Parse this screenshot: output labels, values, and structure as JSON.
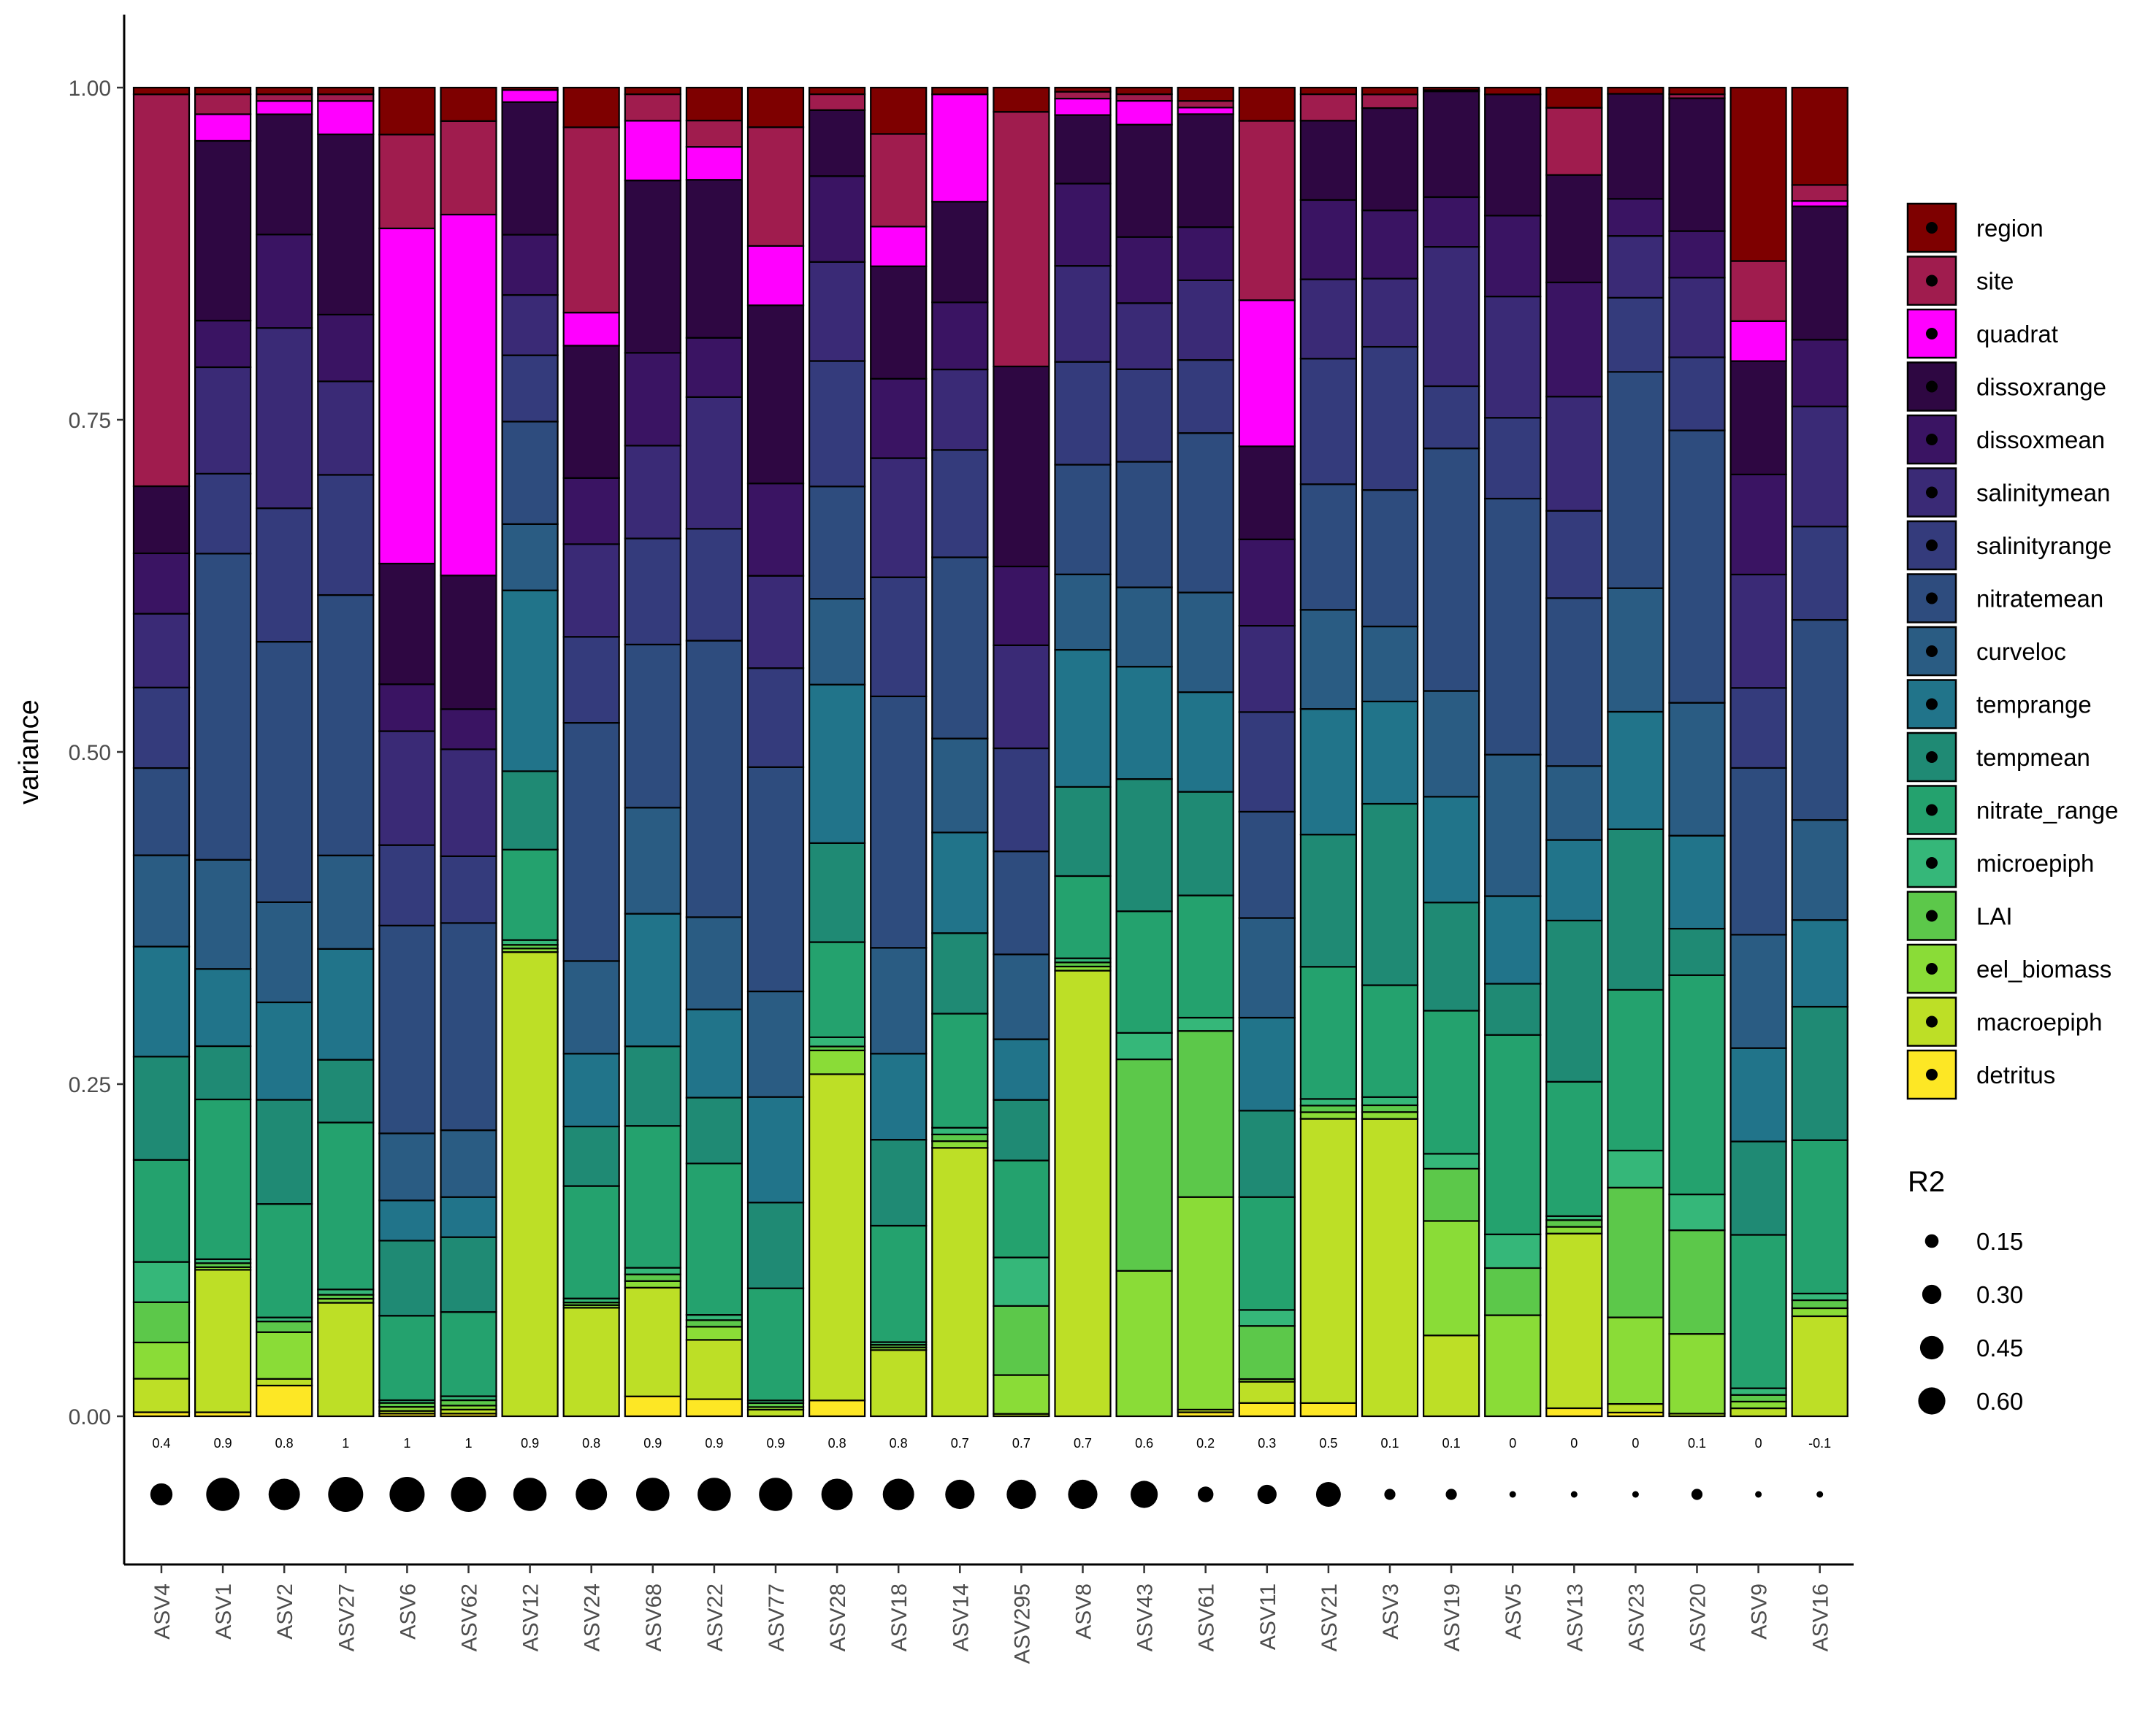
{
  "chart_data": {
    "type": "bar",
    "stacked": true,
    "ylabel": "variance",
    "xlabel": "",
    "ylim": [
      0,
      1
    ],
    "yticks": [
      "0.00",
      "0.25",
      "0.50",
      "0.75",
      "1.00"
    ],
    "categories": [
      "ASV4",
      "ASV1",
      "ASV2",
      "ASV27",
      "ASV6",
      "ASV62",
      "ASV12",
      "ASV24",
      "ASV68",
      "ASV22",
      "ASV77",
      "ASV28",
      "ASV18",
      "ASV14",
      "ASV295",
      "ASV8",
      "ASV43",
      "ASV61",
      "ASV11",
      "ASV21",
      "ASV3",
      "ASV19",
      "ASV5",
      "ASV13",
      "ASV23",
      "ASV20",
      "ASV9",
      "ASV16"
    ],
    "r2_labels": [
      "0.4",
      "0.9",
      "0.8",
      "1",
      "1",
      "1",
      "0.9",
      "0.8",
      "0.9",
      "0.9",
      "0.9",
      "0.8",
      "0.8",
      "0.7",
      "0.7",
      "0.7",
      "0.6",
      "0.2",
      "0.3",
      "0.5",
      "0.1",
      "0.1",
      "0",
      "0",
      "0",
      "0.1",
      "0",
      "-0.1"
    ],
    "r2_values": [
      0.4,
      0.9,
      0.8,
      1,
      1,
      1,
      0.9,
      0.8,
      0.9,
      0.9,
      0.9,
      0.8,
      0.8,
      0.7,
      0.7,
      0.7,
      0.6,
      0.2,
      0.3,
      0.5,
      0.1,
      0.1,
      0,
      0,
      0,
      0.1,
      0,
      -0.1
    ],
    "series": [
      {
        "name": "detritus",
        "color": "#FDE725",
        "values": [
          0.003,
          0.003,
          0.023,
          0,
          0.002,
          0.002,
          0,
          0,
          0.015,
          0.013,
          0,
          0.012,
          0,
          0,
          0,
          0,
          0,
          0.003,
          0.01,
          0.01,
          0,
          0,
          0,
          0.006,
          0.003,
          0,
          0,
          0
        ]
      },
      {
        "name": "macroepiph",
        "color": "#BDDF26",
        "values": [
          0.025,
          0.107,
          0.005,
          0.085,
          0.002,
          0.003,
          0.385,
          0.082,
          0.082,
          0.045,
          0.005,
          0.247,
          0.05,
          0.2,
          0.002,
          0.325,
          0,
          0.002,
          0.016,
          0.215,
          0.218,
          0.065,
          0,
          0.13,
          0.007,
          0.002,
          0.006,
          0.075
        ]
      },
      {
        "name": "eel_biomass",
        "color": "#8ADC37",
        "values": [
          0.027,
          0.002,
          0.035,
          0.003,
          0.003,
          0.003,
          0.003,
          0.002,
          0.005,
          0.01,
          0.002,
          0.018,
          0.002,
          0.005,
          0.032,
          0.003,
          0.11,
          0.16,
          0.002,
          0.005,
          0.005,
          0.092,
          0.075,
          0.005,
          0.07,
          0.06,
          0.005,
          0.006
        ]
      },
      {
        "name": "LAI",
        "color": "#5CC84A",
        "values": [
          0.03,
          0.003,
          0.008,
          0.003,
          0.003,
          0.004,
          0.003,
          0.002,
          0.005,
          0.005,
          0.003,
          0.003,
          0.002,
          0.005,
          0.057,
          0.003,
          0.16,
          0.125,
          0.04,
          0.005,
          0.005,
          0.042,
          0.035,
          0.005,
          0.105,
          0.078,
          0.005,
          0.006
        ]
      },
      {
        "name": "microepiph",
        "color": "#35B779",
        "values": [
          0.03,
          0.003,
          0.003,
          0.004,
          0.002,
          0.003,
          0.004,
          0.003,
          0.005,
          0.004,
          0.002,
          0.007,
          0.002,
          0.005,
          0.04,
          0.003,
          0.02,
          0.01,
          0.012,
          0.005,
          0.006,
          0.012,
          0.025,
          0.003,
          0.03,
          0.027,
          0.005,
          0.005
        ]
      },
      {
        "name": "nitrate_range",
        "color": "#24A26E",
        "values": [
          0.076,
          0.12,
          0.085,
          0.125,
          0.063,
          0.063,
          0.075,
          0.085,
          0.107,
          0.115,
          0.085,
          0.072,
          0.088,
          0.085,
          0.08,
          0.06,
          0.092,
          0.092,
          0.085,
          0.1,
          0.082,
          0.115,
          0.148,
          0.1,
          0.13,
          0.165,
          0.115,
          0.115
        ]
      },
      {
        "name": "tempmean",
        "color": "#1F8A74",
        "values": [
          0.077,
          0.04,
          0.078,
          0.047,
          0.056,
          0.056,
          0.065,
          0.045,
          0.06,
          0.05,
          0.065,
          0.075,
          0.065,
          0.06,
          0.05,
          0.065,
          0.1,
          0.078,
          0.065,
          0.1,
          0.133,
          0.087,
          0.038,
          0.12,
          0.13,
          0.035,
          0.07,
          0.1
        ]
      },
      {
        "name": "temprange",
        "color": "#21748A",
        "values": [
          0.082,
          0.058,
          0.073,
          0.083,
          0.03,
          0.03,
          0.15,
          0.055,
          0.1,
          0.067,
          0.08,
          0.12,
          0.065,
          0.075,
          0.05,
          0.1,
          0.085,
          0.075,
          0.07,
          0.095,
          0.075,
          0.085,
          0.065,
          0.06,
          0.095,
          0.07,
          0.07,
          0.065
        ]
      },
      {
        "name": "curveloc",
        "color": "#2A5C83",
        "values": [
          0.068,
          0.082,
          0.075,
          0.07,
          0.05,
          0.05,
          0.055,
          0.07,
          0.08,
          0.07,
          0.08,
          0.065,
          0.08,
          0.07,
          0.07,
          0.055,
          0.06,
          0.075,
          0.075,
          0.075,
          0.055,
          0.085,
          0.105,
          0.055,
          0.1,
          0.1,
          0.085,
          0.075
        ]
      },
      {
        "name": "nitratemean",
        "color": "#2E4C7E",
        "values": [
          0.065,
          0.23,
          0.195,
          0.195,
          0.155,
          0.155,
          0.085,
          0.18,
          0.123,
          0.21,
          0.17,
          0.085,
          0.19,
          0.135,
          0.085,
          0.08,
          0.095,
          0.12,
          0.08,
          0.095,
          0.1,
          0.195,
          0.19,
          0.125,
          0.175,
          0.205,
          0.125,
          0.15
        ]
      },
      {
        "name": "salinityrange",
        "color": "#343B7C",
        "values": [
          0.06,
          0.06,
          0.1,
          0.09,
          0.06,
          0.05,
          0.055,
          0.065,
          0.08,
          0.085,
          0.075,
          0.095,
          0.09,
          0.08,
          0.085,
          0.075,
          0.07,
          0.055,
          0.075,
          0.095,
          0.105,
          0.05,
          0.06,
          0.065,
          0.06,
          0.055,
          0.06,
          0.07
        ]
      },
      {
        "name": "salinitymean",
        "color": "#3A2A76",
        "values": [
          0.055,
          0.08,
          0.135,
          0.07,
          0.085,
          0.08,
          0.05,
          0.07,
          0.07,
          0.1,
          0.07,
          0.075,
          0.09,
          0.06,
          0.085,
          0.07,
          0.05,
          0.06,
          0.065,
          0.06,
          0.05,
          0.112,
          0.09,
          0.085,
          0.05,
          0.06,
          0.085,
          0.09
        ]
      },
      {
        "name": "dissoxmean",
        "color": "#3A1463",
        "values": [
          0.045,
          0.035,
          0.07,
          0.05,
          0.035,
          0.03,
          0.05,
          0.05,
          0.07,
          0.045,
          0.07,
          0.065,
          0.06,
          0.05,
          0.065,
          0.06,
          0.05,
          0.04,
          0.065,
          0.06,
          0.05,
          0.04,
          0.06,
          0.085,
          0.03,
          0.035,
          0.075,
          0.05
        ]
      },
      {
        "name": "dissoxrange",
        "color": "#2E0742",
        "values": [
          0.05,
          0.135,
          0.09,
          0.135,
          0.09,
          0.1,
          0.11,
          0.1,
          0.13,
          0.12,
          0.135,
          0.05,
          0.085,
          0.075,
          0.165,
          0.05,
          0.085,
          0.085,
          0.07,
          0.06,
          0.075,
          0.085,
          0.09,
          0.08,
          0.085,
          0.1,
          0.085,
          0.1
        ]
      },
      {
        "name": "quadrat",
        "color": "#FF00FF",
        "values": [
          0,
          0.02,
          0.01,
          0.025,
          0.25,
          0.27,
          0.01,
          0.025,
          0.045,
          0.025,
          0.045,
          0,
          0.03,
          0.08,
          0,
          0.012,
          0.018,
          0.005,
          0.11,
          0,
          0,
          0,
          0,
          0,
          0,
          0,
          0.03,
          0.004
        ]
      },
      {
        "name": "site",
        "color": "#A01C4E",
        "values": [
          0.292,
          0.015,
          0.005,
          0.005,
          0.07,
          0.07,
          0,
          0.14,
          0.02,
          0.02,
          0.09,
          0.012,
          0.07,
          0,
          0.21,
          0.005,
          0.005,
          0.005,
          0.135,
          0.02,
          0.01,
          0.001,
          0,
          0.05,
          0,
          0.003,
          0.045,
          0.012
        ]
      },
      {
        "name": "region",
        "color": "#7E0000",
        "values": [
          0.005,
          0.005,
          0.005,
          0.005,
          0.035,
          0.025,
          0.002,
          0.03,
          0.005,
          0.025,
          0.03,
          0.005,
          0.035,
          0.005,
          0.02,
          0.003,
          0.005,
          0.01,
          0.025,
          0.005,
          0.005,
          0.002,
          0.005,
          0.015,
          0.005,
          0.005,
          0.13,
          0.073
        ]
      }
    ],
    "legend": {
      "fill_title": "",
      "fill_items": [
        "region",
        "site",
        "quadrat",
        "dissoxrange",
        "dissoxmean",
        "salinitymean",
        "salinityrange",
        "nitratemean",
        "curveloc",
        "temprange",
        "tempmean",
        "nitrate_range",
        "microepiph",
        "LAI",
        "eel_biomass",
        "macroepiph",
        "detritus"
      ],
      "size_title": "R2",
      "size_items": [
        "0.15",
        "0.30",
        "0.45",
        "0.60"
      ],
      "size_values": [
        0.15,
        0.3,
        0.45,
        0.6
      ],
      "placement": "right"
    },
    "grid": false
  }
}
